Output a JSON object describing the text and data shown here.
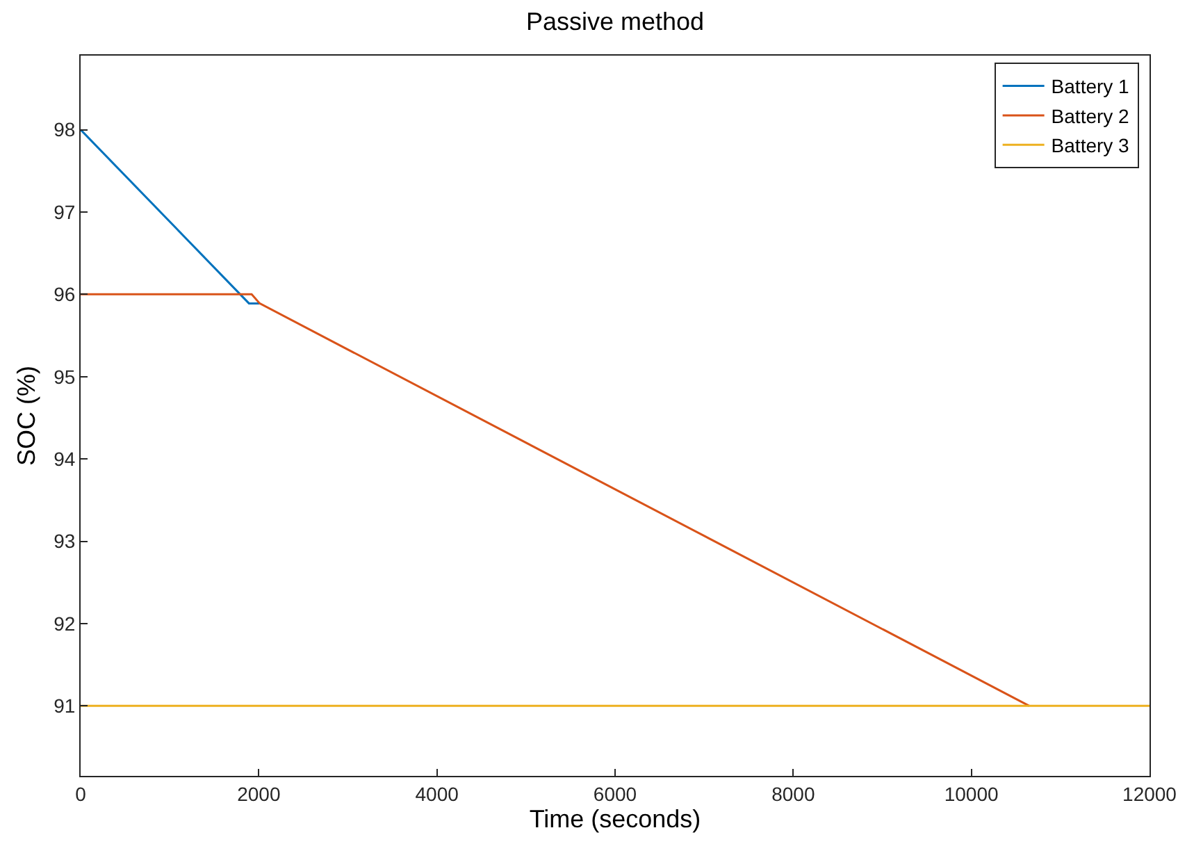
{
  "chart_data": {
    "type": "line",
    "title": "Passive method",
    "xlabel": "Time (seconds)",
    "ylabel": "SOC (%)",
    "xlim": [
      0,
      12000
    ],
    "xticks": [
      0,
      2000,
      4000,
      6000,
      8000,
      10000,
      12000
    ],
    "ylim": [
      90.15,
      98.9
    ],
    "yticks": [
      91,
      92,
      93,
      94,
      95,
      96,
      97,
      98
    ],
    "legend": "top right",
    "marker": "none",
    "line_style": "solid",
    "series": [
      {
        "name": "Battery 1",
        "color": "#0072bd",
        "x": [
          0,
          1890,
          2010
        ],
        "values": [
          98,
          95.89,
          95.89
        ]
      },
      {
        "name": "Battery 2",
        "color": "#d95319",
        "x": [
          0,
          1920,
          2010,
          10650
        ],
        "values": [
          96,
          96,
          95.89,
          91
        ]
      },
      {
        "name": "Battery 3",
        "color": "#edb120",
        "x": [
          0,
          12000
        ],
        "values": [
          91,
          91
        ]
      }
    ]
  }
}
